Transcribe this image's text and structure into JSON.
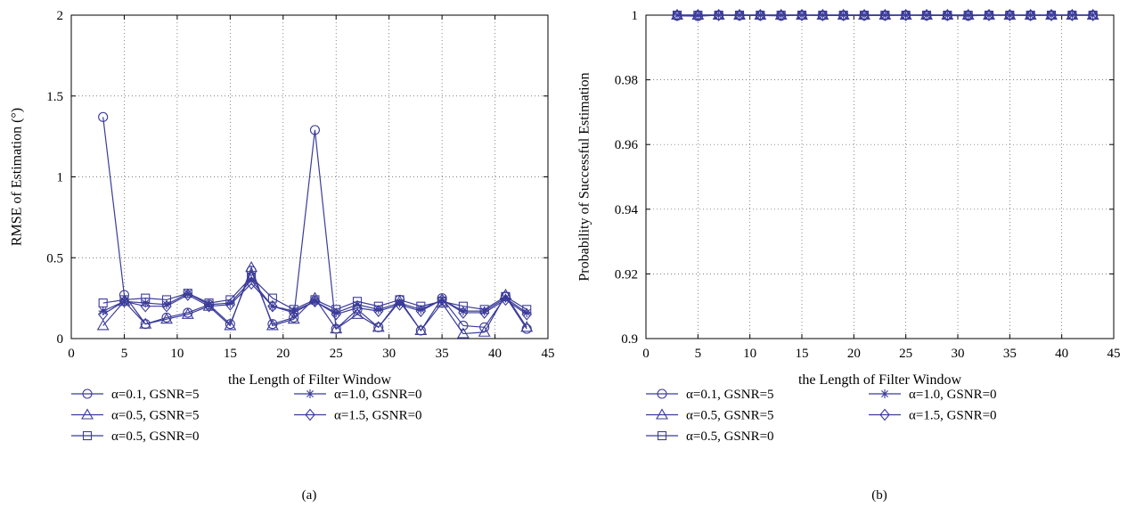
{
  "charts": [
    {
      "id": "a",
      "type": "line",
      "panel_label": "(a)",
      "xlabel": "the Length of Filter Window",
      "ylabel": "RMSE of Estimation (°)",
      "xlim": [
        0,
        45
      ],
      "ylim": [
        0,
        2
      ],
      "xticks": [
        "0",
        "5",
        "10",
        "15",
        "20",
        "25",
        "30",
        "35",
        "40",
        "45"
      ],
      "yticks": [
        "0",
        "0.5",
        "1",
        "1.5",
        "2"
      ],
      "grid": true,
      "legend_position": "below",
      "x": [
        3,
        5,
        7,
        9,
        11,
        13,
        15,
        17,
        19,
        21,
        23,
        25,
        27,
        29,
        31,
        33,
        35,
        37,
        39,
        41,
        43
      ],
      "series": [
        {
          "label": "α=0.1, GSNR=5",
          "marker": "circle",
          "values": [
            1.37,
            0.27,
            0.09,
            0.13,
            0.16,
            0.21,
            0.09,
            0.42,
            0.09,
            0.13,
            1.29,
            0.06,
            0.18,
            0.07,
            0.24,
            0.05,
            0.25,
            0.08,
            0.07,
            0.26,
            0.06
          ]
        },
        {
          "label": "α=0.5, GSNR=5",
          "marker": "triangle",
          "values": [
            0.08,
            0.23,
            0.09,
            0.12,
            0.15,
            0.2,
            0.08,
            0.44,
            0.08,
            0.12,
            0.25,
            0.06,
            0.15,
            0.07,
            0.23,
            0.05,
            0.22,
            0.03,
            0.04,
            0.27,
            0.07
          ]
        },
        {
          "label": "α=0.5, GSNR=0",
          "marker": "square",
          "values": [
            0.22,
            0.24,
            0.25,
            0.24,
            0.28,
            0.22,
            0.24,
            0.38,
            0.25,
            0.18,
            0.24,
            0.18,
            0.23,
            0.2,
            0.24,
            0.2,
            0.23,
            0.2,
            0.18,
            0.26,
            0.18
          ]
        },
        {
          "label": "α=1.0, GSNR=0",
          "marker": "star",
          "values": [
            0.17,
            0.23,
            0.22,
            0.21,
            0.28,
            0.21,
            0.22,
            0.36,
            0.2,
            0.17,
            0.23,
            0.16,
            0.21,
            0.18,
            0.22,
            0.18,
            0.24,
            0.17,
            0.17,
            0.25,
            0.16
          ]
        },
        {
          "label": "α=1.5, GSNR=0",
          "marker": "diamond",
          "values": [
            0.15,
            0.23,
            0.2,
            0.2,
            0.27,
            0.2,
            0.21,
            0.34,
            0.2,
            0.16,
            0.23,
            0.15,
            0.19,
            0.17,
            0.21,
            0.17,
            0.24,
            0.16,
            0.16,
            0.24,
            0.15
          ]
        }
      ]
    },
    {
      "id": "b",
      "type": "line",
      "panel_label": "(b)",
      "xlabel": "the Length of Filter Window",
      "ylabel": "Probability of Successful Estimation",
      "xlim": [
        0,
        45
      ],
      "ylim": [
        0.9,
        1
      ],
      "xticks": [
        "0",
        "5",
        "10",
        "15",
        "20",
        "25",
        "30",
        "35",
        "40",
        "45"
      ],
      "yticks": [
        "0.9",
        "0.92",
        "0.94",
        "0.96",
        "0.98",
        "1"
      ],
      "grid": true,
      "legend_position": "below",
      "x": [
        3,
        5,
        7,
        9,
        11,
        13,
        15,
        17,
        19,
        21,
        23,
        25,
        27,
        29,
        31,
        33,
        35,
        37,
        39,
        41,
        43
      ],
      "series": [
        {
          "label": "α=0.1, GSNR=5",
          "marker": "circle",
          "values": [
            0.9998,
            0.9997,
            1,
            0.9999,
            0.9999,
            0.9998,
            1,
            0.9999,
            0.9999,
            0.9999,
            0.9999,
            1,
            0.9999,
            0.9999,
            0.9998,
            1,
            1,
            0.9999,
            1,
            1,
            1
          ]
        },
        {
          "label": "α=0.5, GSNR=5",
          "marker": "triangle",
          "values": [
            1,
            1,
            1,
            1,
            1,
            1,
            1,
            1,
            1,
            1,
            1,
            1,
            1,
            1,
            1,
            1,
            1,
            1,
            1,
            1,
            1
          ]
        },
        {
          "label": "α=0.5, GSNR=0",
          "marker": "square",
          "values": [
            1,
            1,
            1,
            1,
            1,
            1,
            1,
            1,
            1,
            1,
            1,
            1,
            1,
            1,
            1,
            1,
            1,
            1,
            1,
            1,
            1
          ]
        },
        {
          "label": "α=1.0, GSNR=0",
          "marker": "star",
          "values": [
            1,
            1,
            1,
            1,
            1,
            1,
            1,
            1,
            1,
            1,
            1,
            1,
            1,
            1,
            1,
            1,
            1,
            1,
            1,
            1,
            1
          ]
        },
        {
          "label": "α=1.5, GSNR=0",
          "marker": "diamond",
          "values": [
            1,
            1,
            1,
            1,
            1,
            1,
            1,
            1,
            1,
            1,
            1,
            1,
            1,
            1,
            1,
            1,
            1,
            1,
            1,
            1,
            1
          ]
        }
      ]
    }
  ],
  "colors": {
    "line": "#3b3b9a",
    "grid": "#555555",
    "axis": "#000000"
  }
}
